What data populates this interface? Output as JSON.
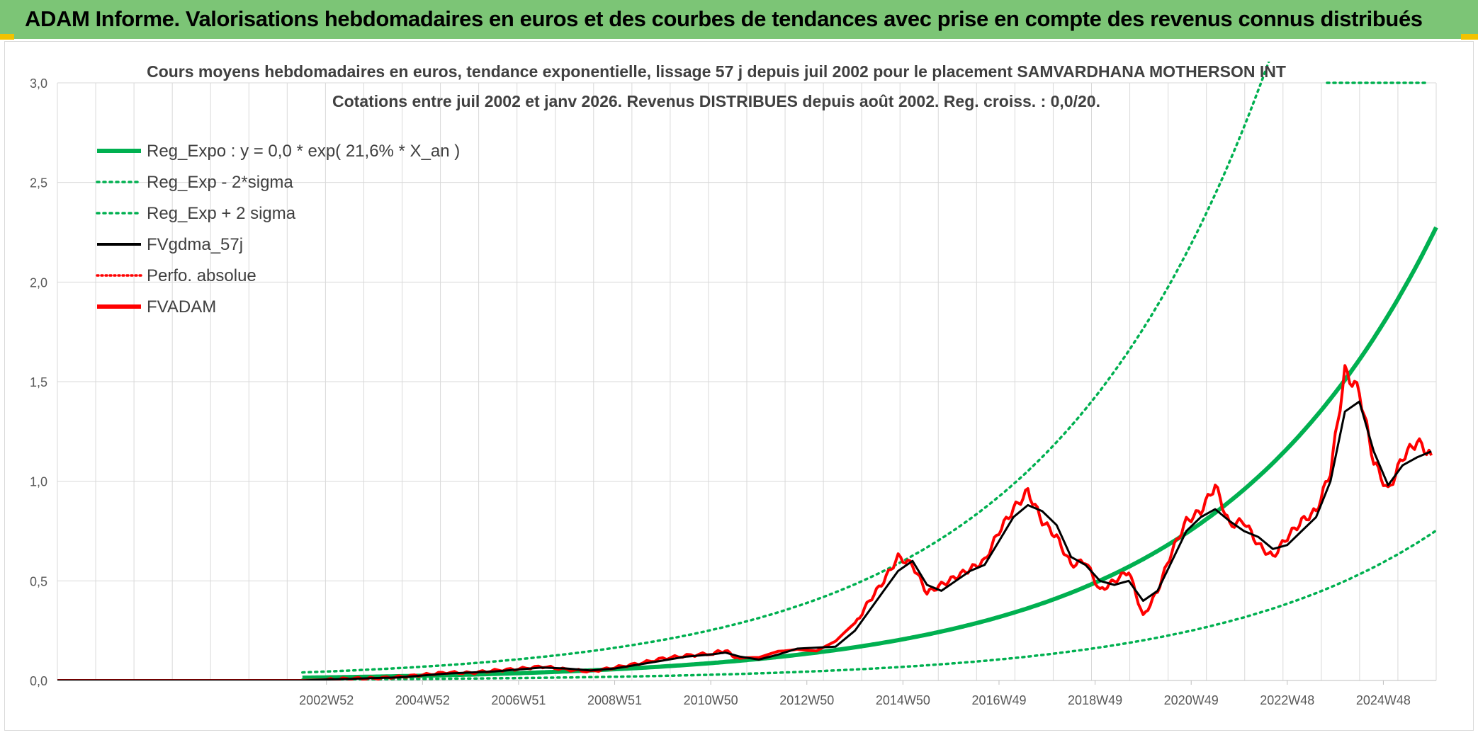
{
  "header": {
    "title": "ADAM Informe. Valorisations hebdomadaires en euros et des courbes de tendances avec prise en compte des revenus connus distribués"
  },
  "colors": {
    "banner": "#7cc576",
    "accent": "#f2c200",
    "reg_expo": "#00b050",
    "fvgdma": "#000000",
    "fvadam": "#ff0000",
    "grid": "#d9d9d9"
  },
  "chart_data": {
    "type": "line",
    "title": "Cours moyens hebdomadaires en euros, tendance exponentielle, lissage 57 j depuis juil 2002 pour le placement SAMVARDHANA MOTHERSON INT",
    "subtitle": "Cotations entre juil 2002 et janv 2026. Revenus DISTRIBUES depuis août 2002. Reg. croiss. : 0,0/20.",
    "xlabel": "",
    "ylabel": "",
    "ylim": [
      0,
      3.0
    ],
    "xlim": [
      1997.4,
      2026.1
    ],
    "grid": true,
    "y_ticks": [
      "0,0",
      "0,5",
      "1,0",
      "1,5",
      "2,0",
      "2,5",
      "3,0"
    ],
    "y_tick_values": [
      0,
      0.5,
      1.0,
      1.5,
      2.0,
      2.5,
      3.0
    ],
    "x_tick_labels": [
      "2002W52",
      "2004W52",
      "2006W51",
      "2008W51",
      "2010W50",
      "2012W50",
      "2014W50",
      "2016W49",
      "2018W49",
      "2020W49",
      "2022W48",
      "2024W48"
    ],
    "x_tick_years": [
      2003.0,
      2005.0,
      2007.0,
      2009.0,
      2011.0,
      2013.0,
      2015.0,
      2017.0,
      2019.0,
      2021.0,
      2023.0,
      2025.0
    ],
    "legend_position": "top-left",
    "legend": [
      {
        "label": "Reg_Expo : y = 0,0 * exp( 21,6% *  X_an )",
        "style": "solid-thick",
        "color": "#00b050"
      },
      {
        "label": "Reg_Exp - 2*sigma",
        "style": "dotted",
        "color": "#00b050"
      },
      {
        "label": "Reg_Exp + 2 sigma",
        "style": "dotted",
        "color": "#00b050"
      },
      {
        "label": "FVgdma_57j",
        "style": "solid",
        "color": "#000000"
      },
      {
        "label": "Perfo. absolue",
        "style": "dotted",
        "color": "#ff0000"
      },
      {
        "label": "FVADAM",
        "style": "solid-thick",
        "color": "#ff0000"
      }
    ],
    "series": [
      {
        "name": "Reg_Expo",
        "type": "exponential",
        "x_start": 2002.5,
        "x_end": 2026.1,
        "a": 0.0139,
        "b": 0.216,
        "x0": 2002.5
      },
      {
        "name": "Reg_Exp - 2*sigma",
        "type": "exponential",
        "x_start": 2002.5,
        "x_end": 2026.1,
        "a": 0.0046,
        "b": 0.216,
        "x0": 2002.5
      },
      {
        "name": "Reg_Exp + 2 sigma",
        "type": "exponential",
        "x_start": 2002.5,
        "x_end": 2026.1,
        "a": 0.0403,
        "b": 0.216,
        "x0": 2002.5
      },
      {
        "name": "Perfo. absolue",
        "x": [
          1997.4,
          2002.5
        ],
        "y": [
          0.0,
          0.0
        ]
      },
      {
        "name": "FVgdma_57j",
        "x": [
          1997.4,
          2002.5,
          2003.0,
          2003.5,
          2004.0,
          2004.5,
          2005.0,
          2005.5,
          2006.0,
          2006.5,
          2007.0,
          2007.5,
          2008.0,
          2008.5,
          2009.0,
          2009.5,
          2010.0,
          2010.5,
          2011.0,
          2011.3,
          2011.6,
          2012.0,
          2012.4,
          2012.8,
          2013.2,
          2013.6,
          2014.0,
          2014.3,
          2014.6,
          2014.9,
          2015.2,
          2015.5,
          2015.8,
          2016.1,
          2016.4,
          2016.7,
          2017.0,
          2017.3,
          2017.6,
          2017.9,
          2018.2,
          2018.5,
          2018.8,
          2019.1,
          2019.4,
          2019.7,
          2020.0,
          2020.3,
          2020.6,
          2020.9,
          2021.2,
          2021.5,
          2021.8,
          2022.1,
          2022.4,
          2022.7,
          2023.0,
          2023.3,
          2023.6,
          2023.9,
          2024.2,
          2024.5,
          2024.8,
          2025.1,
          2025.4,
          2025.7,
          2026.0
        ],
        "y": [
          0.0,
          0.0,
          0.005,
          0.008,
          0.012,
          0.015,
          0.025,
          0.035,
          0.04,
          0.045,
          0.055,
          0.065,
          0.06,
          0.05,
          0.06,
          0.08,
          0.1,
          0.12,
          0.13,
          0.14,
          0.12,
          0.105,
          0.13,
          0.16,
          0.165,
          0.17,
          0.25,
          0.35,
          0.45,
          0.55,
          0.6,
          0.48,
          0.45,
          0.5,
          0.55,
          0.58,
          0.7,
          0.82,
          0.88,
          0.85,
          0.78,
          0.62,
          0.58,
          0.5,
          0.48,
          0.5,
          0.4,
          0.45,
          0.6,
          0.75,
          0.82,
          0.86,
          0.8,
          0.75,
          0.72,
          0.66,
          0.68,
          0.75,
          0.82,
          1.0,
          1.35,
          1.4,
          1.15,
          0.98,
          1.08,
          1.12,
          1.15
        ]
      },
      {
        "name": "FVADAM",
        "x": [
          1997.4,
          2002.5,
          2003.0,
          2003.5,
          2004.0,
          2004.5,
          2005.0,
          2005.5,
          2006.0,
          2006.5,
          2007.0,
          2007.5,
          2008.0,
          2008.5,
          2009.0,
          2009.5,
          2010.0,
          2010.5,
          2011.0,
          2011.3,
          2011.6,
          2012.0,
          2012.4,
          2012.8,
          2013.2,
          2013.6,
          2014.0,
          2014.3,
          2014.6,
          2014.9,
          2015.2,
          2015.5,
          2015.8,
          2016.1,
          2016.4,
          2016.7,
          2017.0,
          2017.3,
          2017.6,
          2017.9,
          2018.2,
          2018.5,
          2018.8,
          2019.1,
          2019.4,
          2019.7,
          2020.0,
          2020.3,
          2020.6,
          2020.9,
          2021.2,
          2021.5,
          2021.8,
          2022.1,
          2022.4,
          2022.7,
          2023.0,
          2023.3,
          2023.6,
          2023.9,
          2024.2,
          2024.5,
          2024.8,
          2025.1,
          2025.4,
          2025.7,
          2026.0
        ],
        "y": [
          0.0,
          0.0,
          0.004,
          0.01,
          0.011,
          0.018,
          0.028,
          0.04,
          0.038,
          0.05,
          0.058,
          0.07,
          0.055,
          0.045,
          0.065,
          0.085,
          0.11,
          0.125,
          0.135,
          0.15,
          0.105,
          0.11,
          0.15,
          0.165,
          0.15,
          0.19,
          0.28,
          0.4,
          0.5,
          0.62,
          0.58,
          0.44,
          0.48,
          0.52,
          0.56,
          0.6,
          0.75,
          0.86,
          0.95,
          0.8,
          0.72,
          0.58,
          0.6,
          0.45,
          0.5,
          0.55,
          0.32,
          0.45,
          0.65,
          0.8,
          0.85,
          0.98,
          0.78,
          0.8,
          0.68,
          0.62,
          0.72,
          0.8,
          0.85,
          1.05,
          1.55,
          1.45,
          1.1,
          0.95,
          1.12,
          1.2,
          1.13
        ]
      }
    ]
  }
}
